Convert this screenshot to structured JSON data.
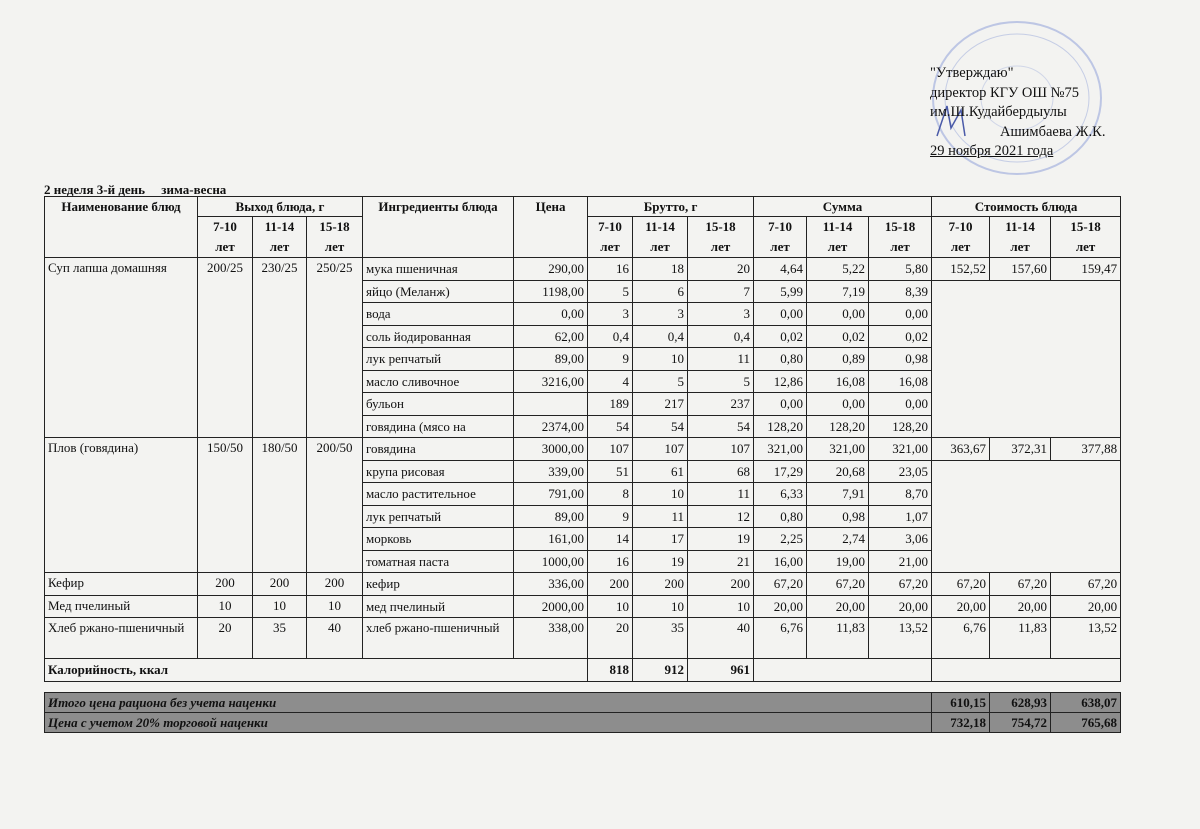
{
  "approval": {
    "line1": "\"Утверждаю\"",
    "line2": "директор КГУ ОШ №75",
    "line3": "им.Ш.Кудайбердыулы",
    "line4": "Ашимбаева Ж.К.",
    "line5": "29 ноября 2021 года",
    "stamp_color": "#6f7fc0"
  },
  "title": "2 неделя 3-й день     зима-весна",
  "headers": {
    "name": "Наименование блюд",
    "yield": "Выход блюда, г",
    "ingredients": "Ингредиенты блюда",
    "price": "Цена",
    "brutto": "Брутто, г",
    "sum": "Сумма",
    "cost": "Стоимость блюда",
    "ages": [
      "7-10 лет",
      "11-14 лет",
      "15-18 лет"
    ]
  },
  "dishes": [
    {
      "name": "Суп лапша домашняя",
      "yield": [
        "200/25",
        "230/25",
        "250/25"
      ],
      "cost": [
        "152,52",
        "157,60",
        "159,47"
      ],
      "ingredients": [
        {
          "name": "мука пшеничная",
          "price": "290,00",
          "brutto": [
            "16",
            "18",
            "20"
          ],
          "sum": [
            "4,64",
            "5,22",
            "5,80"
          ]
        },
        {
          "name": "яйцо (Меланж)",
          "price": "1198,00",
          "brutto": [
            "5",
            "6",
            "7"
          ],
          "sum": [
            "5,99",
            "7,19",
            "8,39"
          ]
        },
        {
          "name": "вода",
          "price": "0,00",
          "brutto": [
            "3",
            "3",
            "3"
          ],
          "sum": [
            "0,00",
            "0,00",
            "0,00"
          ]
        },
        {
          "name": "соль йодированная",
          "price": "62,00",
          "brutto": [
            "0,4",
            "0,4",
            "0,4"
          ],
          "sum": [
            "0,02",
            "0,02",
            "0,02"
          ]
        },
        {
          "name": "лук репчатый",
          "price": "89,00",
          "brutto": [
            "9",
            "10",
            "11"
          ],
          "sum": [
            "0,80",
            "0,89",
            "0,98"
          ]
        },
        {
          "name": "масло сливочное",
          "price": "3216,00",
          "brutto": [
            "4",
            "5",
            "5"
          ],
          "sum": [
            "12,86",
            "16,08",
            "16,08"
          ]
        },
        {
          "name": "бульон",
          "price": "",
          "brutto": [
            "189",
            "217",
            "237"
          ],
          "sum": [
            "0,00",
            "0,00",
            "0,00"
          ]
        },
        {
          "name": "говядина (мясо на",
          "price": "2374,00",
          "brutto": [
            "54",
            "54",
            "54"
          ],
          "sum": [
            "128,20",
            "128,20",
            "128,20"
          ]
        }
      ]
    },
    {
      "name": "Плов (говядина)",
      "yield": [
        "150/50",
        "180/50",
        "200/50"
      ],
      "cost": [
        "363,67",
        "372,31",
        "377,88"
      ],
      "ingredients": [
        {
          "name": "говядина",
          "price": "3000,00",
          "brutto": [
            "107",
            "107",
            "107"
          ],
          "sum": [
            "321,00",
            "321,00",
            "321,00"
          ]
        },
        {
          "name": "крупа рисовая",
          "price": "339,00",
          "brutto": [
            "51",
            "61",
            "68"
          ],
          "sum": [
            "17,29",
            "20,68",
            "23,05"
          ]
        },
        {
          "name": "масло растительное",
          "price": "791,00",
          "brutto": [
            "8",
            "10",
            "11"
          ],
          "sum": [
            "6,33",
            "7,91",
            "8,70"
          ]
        },
        {
          "name": "лук репчатый",
          "price": "89,00",
          "brutto": [
            "9",
            "11",
            "12"
          ],
          "sum": [
            "0,80",
            "0,98",
            "1,07"
          ]
        },
        {
          "name": "морковь",
          "price": "161,00",
          "brutto": [
            "14",
            "17",
            "19"
          ],
          "sum": [
            "2,25",
            "2,74",
            "3,06"
          ]
        },
        {
          "name": "томатная паста",
          "price": "1000,00",
          "brutto": [
            "16",
            "19",
            "21"
          ],
          "sum": [
            "16,00",
            "19,00",
            "21,00"
          ]
        }
      ]
    },
    {
      "name": "Кефир",
      "yield": [
        "200",
        "200",
        "200"
      ],
      "cost": [
        "67,20",
        "67,20",
        "67,20"
      ],
      "ingredients": [
        {
          "name": "кефир",
          "price": "336,00",
          "brutto": [
            "200",
            "200",
            "200"
          ],
          "sum": [
            "67,20",
            "67,20",
            "67,20"
          ]
        }
      ]
    },
    {
      "name": "Мед пчелиный",
      "yield": [
        "10",
        "10",
        "10"
      ],
      "cost": [
        "20,00",
        "20,00",
        "20,00"
      ],
      "ingredients": [
        {
          "name": "мед пчелиный",
          "price": "2000,00",
          "brutto": [
            "10",
            "10",
            "10"
          ],
          "sum": [
            "20,00",
            "20,00",
            "20,00"
          ]
        }
      ]
    },
    {
      "name": "Хлеб ржано-пшеничный",
      "yield": [
        "20",
        "35",
        "40"
      ],
      "cost": [
        "6,76",
        "11,83",
        "13,52"
      ],
      "ingredients": [
        {
          "name": "хлеб ржано-пшеничный",
          "price": "338,00",
          "brutto": [
            "20",
            "35",
            "40"
          ],
          "sum": [
            "6,76",
            "11,83",
            "13,52"
          ]
        }
      ]
    }
  ],
  "calories": {
    "label": "Калорийность, ккал",
    "values": [
      "818",
      "912",
      "961"
    ]
  },
  "totals": [
    {
      "label": "Итого цена рациона без учета наценки",
      "values": [
        "610,15",
        "628,93",
        "638,07"
      ]
    },
    {
      "label": "Цена с учетом 20% торговой наценки",
      "values": [
        "732,18",
        "754,72",
        "765,68"
      ]
    }
  ]
}
